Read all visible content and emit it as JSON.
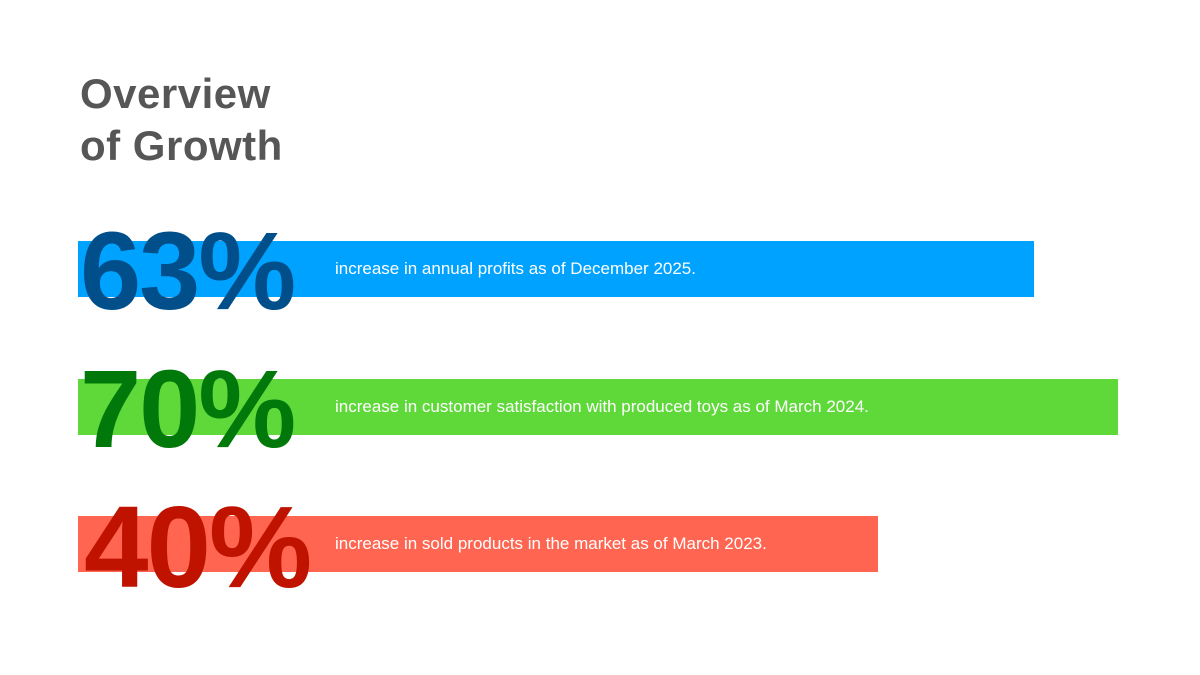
{
  "title_line1": "Overview",
  "title_line2": "of Growth",
  "stats": [
    {
      "value": "63%",
      "text": "increase in annual profits as of December 2025.",
      "bar_color": "#00A2FF",
      "num_color": "#004F8A"
    },
    {
      "value": "70%",
      "text": "increase in customer satisfaction with produced toys as of March 2024.",
      "bar_color": "#5FD93A",
      "num_color": "#00780A"
    },
    {
      "value": "40%",
      "text": "increase in sold products in the market as of March 2023.",
      "bar_color": "#FF6550",
      "num_color": "#BF1300"
    }
  ]
}
